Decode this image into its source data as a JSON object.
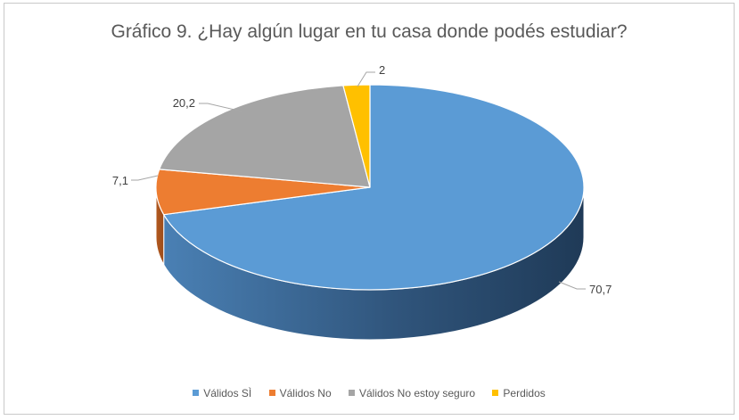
{
  "chart_data": {
    "type": "pie",
    "title": "Gráfico 9.   ¿Hay algún lugar en tu casa donde podés estudiar?",
    "categories": [
      "Válidos SÌ",
      "Válidos No",
      "Válidos No estoy seguro",
      "Perdidos"
    ],
    "values": [
      70.7,
      7.1,
      20.2,
      2
    ],
    "data_labels": [
      "70,7",
      "7,1",
      "20,2",
      "2"
    ],
    "colors": [
      "#5b9bd5",
      "#ed7d31",
      "#a5a5a5",
      "#ffc000"
    ],
    "style": "3d",
    "legend": "bottom"
  }
}
